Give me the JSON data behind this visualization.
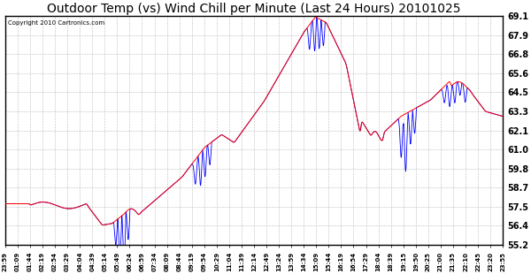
{
  "title": "Outdoor Temp (vs) Wind Chill per Minute (Last 24 Hours) 20101025",
  "copyright": "Copyright 2010 Cartronics.com",
  "yticks": [
    55.2,
    56.4,
    57.5,
    58.7,
    59.8,
    61.0,
    62.1,
    63.3,
    64.5,
    65.6,
    66.8,
    67.9,
    69.1
  ],
  "ylim": [
    55.2,
    69.1
  ],
  "xtick_labels": [
    "23:59",
    "01:09",
    "01:44",
    "02:19",
    "02:54",
    "03:29",
    "04:04",
    "04:39",
    "05:14",
    "05:49",
    "06:24",
    "06:59",
    "07:34",
    "08:09",
    "08:44",
    "09:19",
    "09:54",
    "10:29",
    "11:04",
    "11:39",
    "12:14",
    "12:49",
    "13:24",
    "13:59",
    "14:34",
    "15:09",
    "15:44",
    "16:19",
    "16:54",
    "17:29",
    "18:04",
    "18:39",
    "19:15",
    "19:50",
    "20:25",
    "21:00",
    "21:35",
    "22:10",
    "22:45",
    "23:20",
    "23:55"
  ],
  "background_color": "#ffffff",
  "grid_color": "#aaaaaa",
  "title_fontsize": 10,
  "red_color": "#ff0000",
  "blue_color": "#0000ff"
}
